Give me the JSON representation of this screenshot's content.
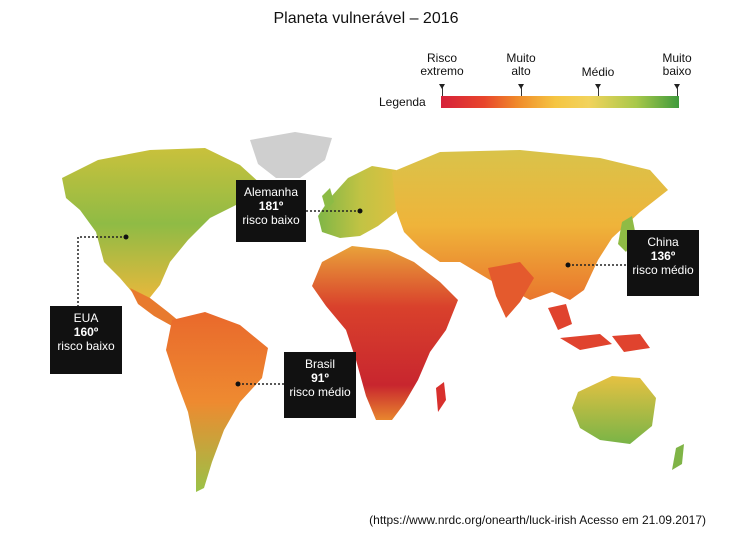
{
  "title": "Planeta vulnerável – 2016",
  "legend": {
    "word": "Legenda",
    "labels": [
      {
        "line1": "Risco",
        "line2": "extremo"
      },
      {
        "line1": "Muito",
        "line2": "alto"
      },
      {
        "line1": "Médio",
        "line2": ""
      },
      {
        "line1": "Muito",
        "line2": "baixo"
      }
    ],
    "colors": [
      "#d6213a",
      "#f08a2a",
      "#f5c542",
      "#3f9a3c"
    ]
  },
  "callouts": {
    "alemanha": {
      "name": "Alemanha",
      "rank": "181º",
      "risk": "risco baixo"
    },
    "china": {
      "name": "China",
      "rank": "136º",
      "risk": "risco médio"
    },
    "eua": {
      "name": "EUA",
      "rank": "160º",
      "risk": "risco baixo"
    },
    "brasil": {
      "name": "Brasil",
      "rank": "91º",
      "risk": "risco médio"
    }
  },
  "source": "(https://www.nrdc.org/onearth/luck-irish Acesso em 21.09.2017)"
}
